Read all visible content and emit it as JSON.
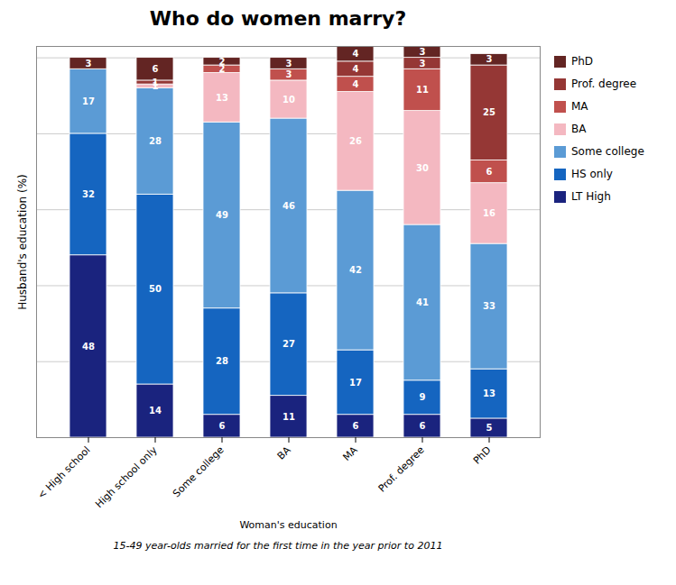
{
  "chart_data": {
    "type": "bar",
    "stacked": true,
    "title": "Who do women marry?",
    "subtitle": "15-49 year-olds married for the first time in the year prior to 2011",
    "xlabel": "Woman's education",
    "ylabel": "Husband's education (%)",
    "categories": [
      "< High school",
      "High school only",
      "Some college",
      "BA",
      "MA",
      "Prof. degree",
      "PhD"
    ],
    "series": [
      {
        "name": "LT High",
        "color": "#1a237e",
        "values": [
          48,
          14,
          6,
          11,
          6,
          6,
          5
        ]
      },
      {
        "name": "HS only",
        "color": "#1565c0",
        "values": [
          32,
          50,
          28,
          27,
          17,
          9,
          13
        ]
      },
      {
        "name": "Some college",
        "color": "#5b9bd5",
        "values": [
          17,
          28,
          49,
          46,
          42,
          41,
          33
        ]
      },
      {
        "name": "BA",
        "color": "#f4b8c1",
        "values": [
          0,
          1,
          13,
          10,
          26,
          30,
          16
        ]
      },
      {
        "name": "MA",
        "color": "#c0504d",
        "values": [
          0,
          0,
          2,
          3,
          4,
          11,
          6
        ]
      },
      {
        "name": "Prof. degree",
        "color": "#953735",
        "values": [
          0,
          1,
          0,
          0,
          4,
          3,
          25
        ]
      },
      {
        "name": "PhD",
        "color": "#632523",
        "values": [
          3,
          6,
          2,
          3,
          4,
          3,
          3
        ]
      }
    ],
    "ylim": [
      0,
      103
    ],
    "yticks": [
      0,
      20,
      40,
      60,
      80,
      100
    ],
    "grid": true,
    "legend": "right",
    "data_labels": true,
    "tick_labels": "x"
  }
}
